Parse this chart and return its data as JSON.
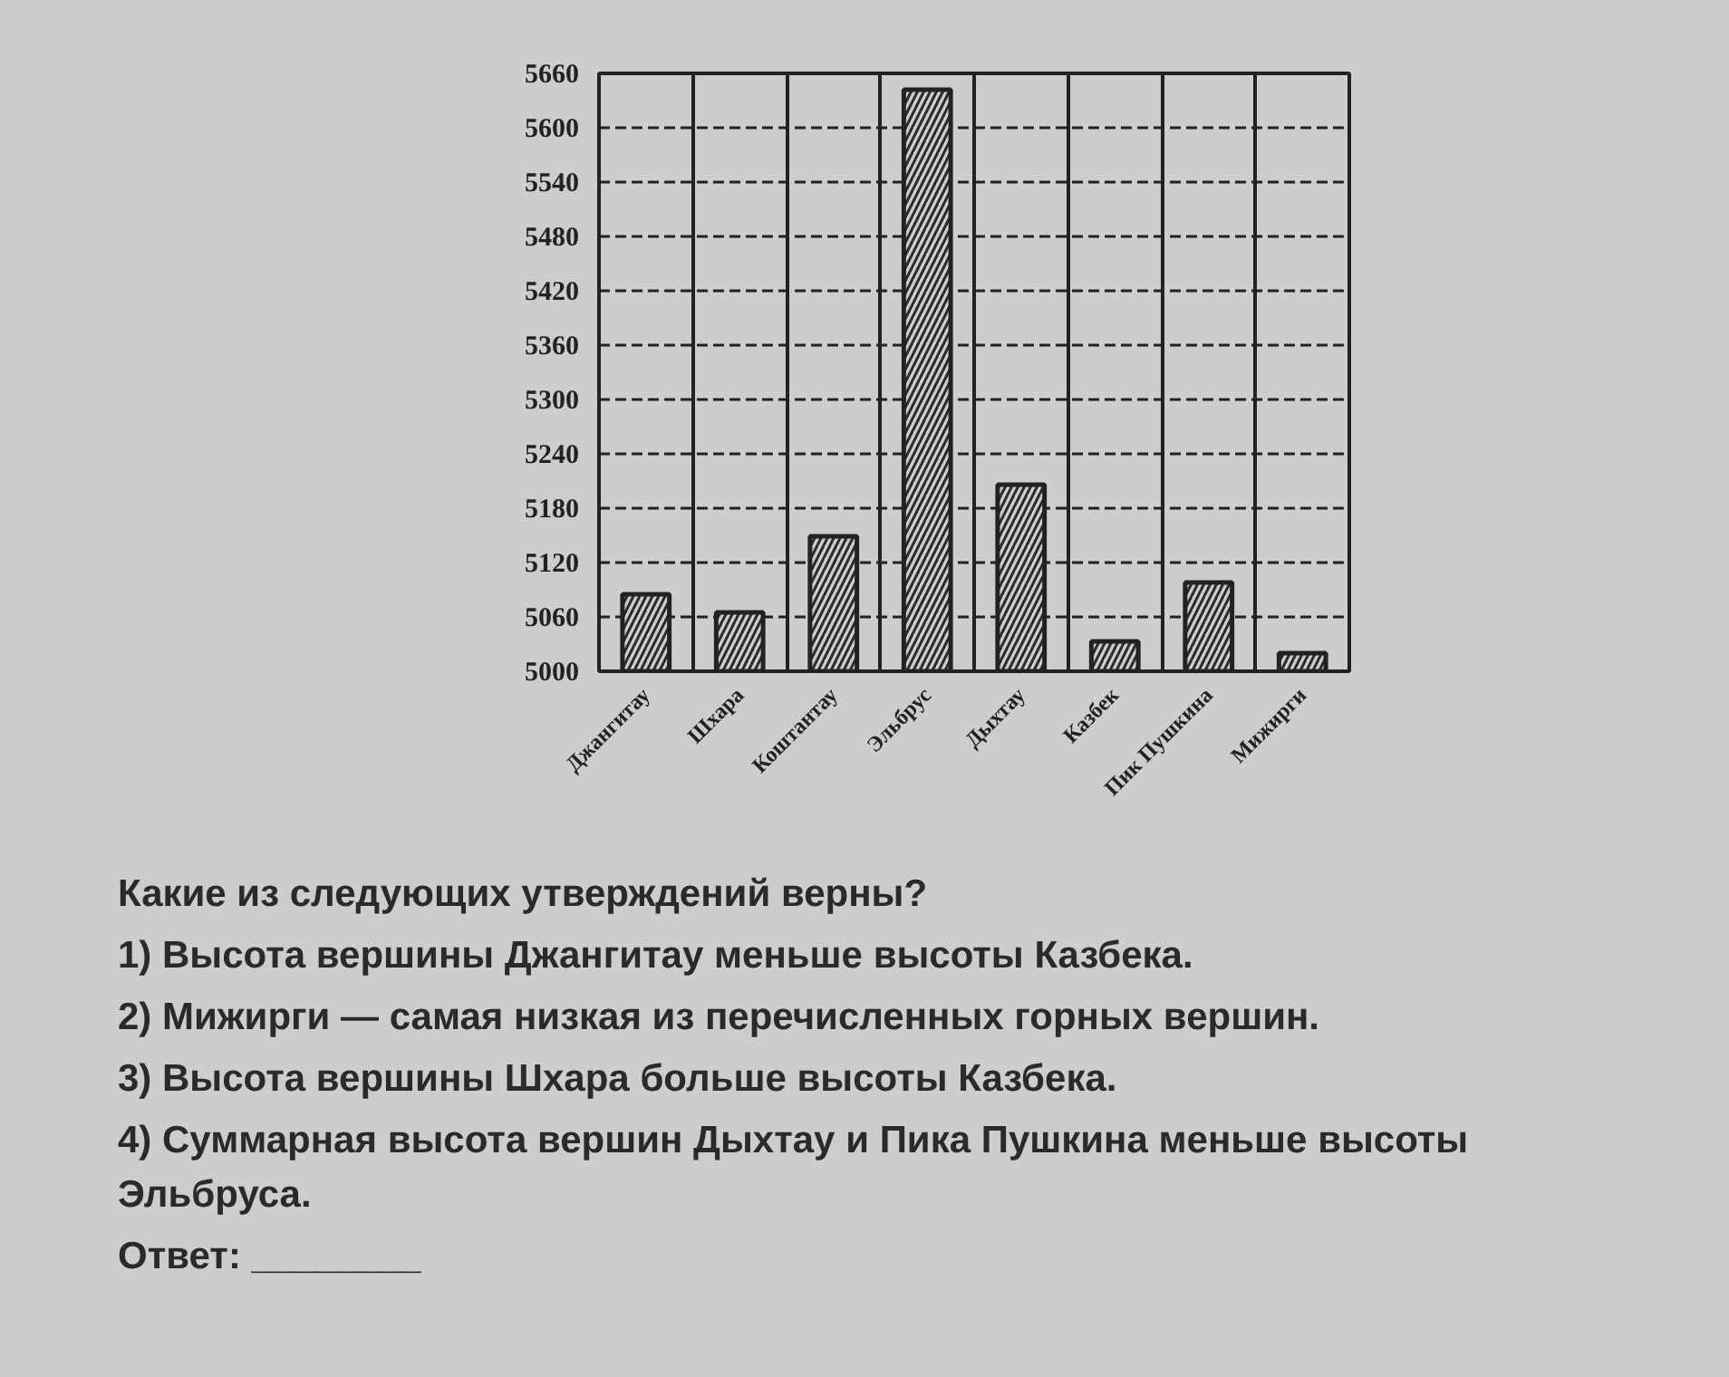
{
  "chart_data": {
    "type": "bar",
    "categories": [
      "Джангитау",
      "Шхара",
      "Коштантау",
      "Эльбрус",
      "Дыхтау",
      "Казбек",
      "Пик Пушкина",
      "Мижирги"
    ],
    "values": [
      5085,
      5065,
      5149,
      5642,
      5206,
      5033,
      5098,
      5020
    ],
    "color": "#2b2b2b",
    "ylim": [
      5000,
      5660
    ],
    "yticks": [
      5000,
      5060,
      5120,
      5180,
      5240,
      5300,
      5360,
      5420,
      5480,
      5540,
      5600,
      5660
    ],
    "grid": true,
    "annotations": [
      "Какие из следующих утверждений верны?",
      "1) Высота вершины Джангитау меньше высоты Казбека.",
      "2) Мижирги — самая низкая из перечисленных горных вершин.",
      "3) Высота вершины Шхара больше высоты Казбека.",
      "4) Суммарная высота вершин Дыхтау и Пика Пушкина меньше высоты Эльбруса.",
      "Ответ: ________"
    ]
  }
}
